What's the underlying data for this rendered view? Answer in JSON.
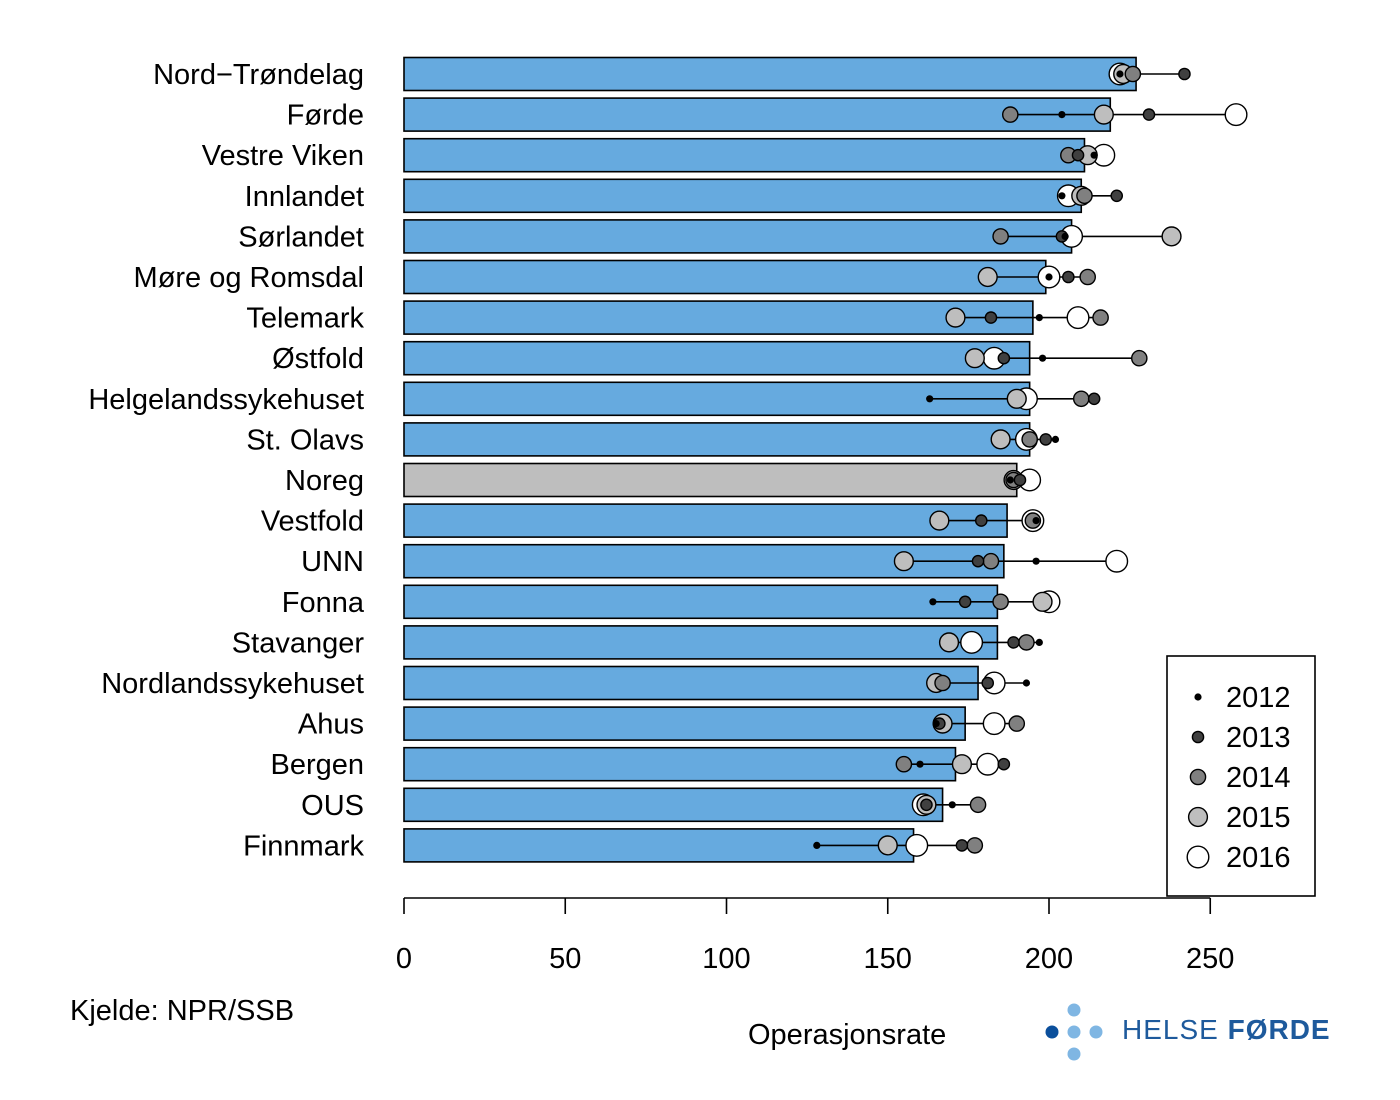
{
  "chart_data": {
    "type": "bar",
    "title": "",
    "xlabel": "Operasjonsrate",
    "ylabel": "",
    "xlim": [
      0,
      285
    ],
    "x_ticks": [
      0,
      50,
      100,
      150,
      200,
      250
    ],
    "highlight_category": "Noreg",
    "colors": {
      "bar": "#66aadf",
      "highlight_bar": "#bebebe",
      "point_2012": "#000000",
      "point_2013": "#404040",
      "point_2014": "#808080",
      "point_2015": "#bebebe",
      "point_2016": "#ffffff"
    },
    "series_names": [
      "2012",
      "2013",
      "2014",
      "2015",
      "2016"
    ],
    "categories": [
      "Nord−Trøndelag",
      "Førde",
      "Vestre Viken",
      "Innlandet",
      "Sørlandet",
      "Møre og Romsdal",
      "Telemark",
      "Østfold",
      "Helgelandssykehuset",
      "St. Olavs",
      "Noreg",
      "Vestfold",
      "UNN",
      "Fonna",
      "Stavanger",
      "Nordlandssykehuset",
      "Ahus",
      "Bergen",
      "OUS",
      "Finnmark"
    ],
    "bar_values": [
      227,
      219,
      211,
      210,
      207,
      199,
      195,
      194,
      194,
      194,
      190,
      187,
      186,
      184,
      184,
      178,
      174,
      171,
      167,
      158
    ],
    "points": [
      [
        222,
        242,
        226,
        223,
        222
      ],
      [
        204,
        231,
        188,
        217,
        258
      ],
      [
        214,
        209,
        206,
        212,
        217
      ],
      [
        204,
        221,
        211,
        210,
        206
      ],
      [
        205,
        204,
        185,
        238,
        207
      ],
      [
        200,
        206,
        212,
        181,
        200
      ],
      [
        197,
        182,
        216,
        171,
        209
      ],
      [
        198,
        186,
        228,
        177,
        183
      ],
      [
        163,
        214,
        210,
        190,
        193
      ],
      [
        202,
        199,
        194,
        185,
        193
      ],
      [
        188,
        191,
        189,
        189,
        194
      ],
      [
        196,
        179,
        195,
        166,
        195
      ],
      [
        196,
        178,
        182,
        155,
        221
      ],
      [
        164,
        174,
        185,
        198,
        200
      ],
      [
        197,
        189,
        193,
        169,
        176
      ],
      [
        193,
        181,
        167,
        165,
        183
      ],
      [
        165,
        166,
        190,
        167,
        183
      ],
      [
        160,
        186,
        155,
        173,
        181
      ],
      [
        170,
        162,
        178,
        162,
        161
      ],
      [
        128,
        173,
        177,
        150,
        159
      ]
    ]
  },
  "footer": {
    "source": "Kjelde: NPR/SSB",
    "logo_text_light": "HELSE ",
    "logo_text_bold": "FØRDE"
  }
}
